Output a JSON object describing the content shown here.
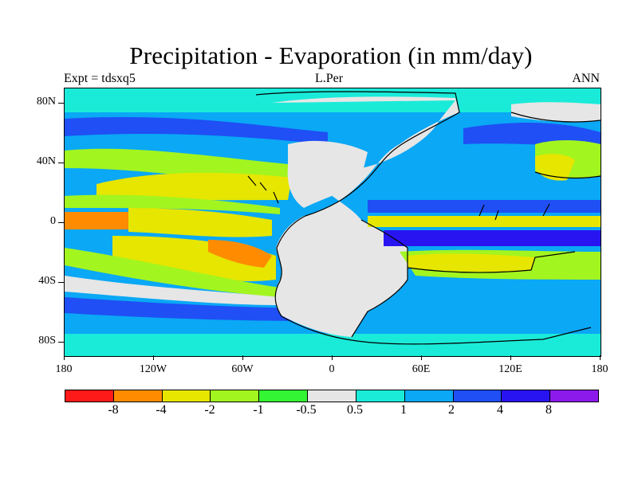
{
  "title": "Precipitation - Evaporation (in mm/day)",
  "subtitle_left": "Expt = tdsxq5",
  "subtitle_center": "L.Per",
  "subtitle_right": "ANN",
  "lat_labels": [
    "80N",
    "40N",
    "0",
    "40S",
    "80S"
  ],
  "lon_labels": [
    "180",
    "120W",
    "60W",
    "0",
    "60E",
    "120E",
    "180"
  ],
  "colorbar": {
    "colors": [
      "#ff1a1a",
      "#ff8c00",
      "#e6e600",
      "#a3f51f",
      "#33f533",
      "#e6e6e6",
      "#1aebd9",
      "#0aa8f5",
      "#1f4ff5",
      "#2814f0",
      "#8c1aeb"
    ],
    "labels": [
      "-8",
      "-4",
      "-2",
      "-1",
      "-0.5",
      "0.5",
      "1",
      "2",
      "4",
      "8"
    ]
  }
}
